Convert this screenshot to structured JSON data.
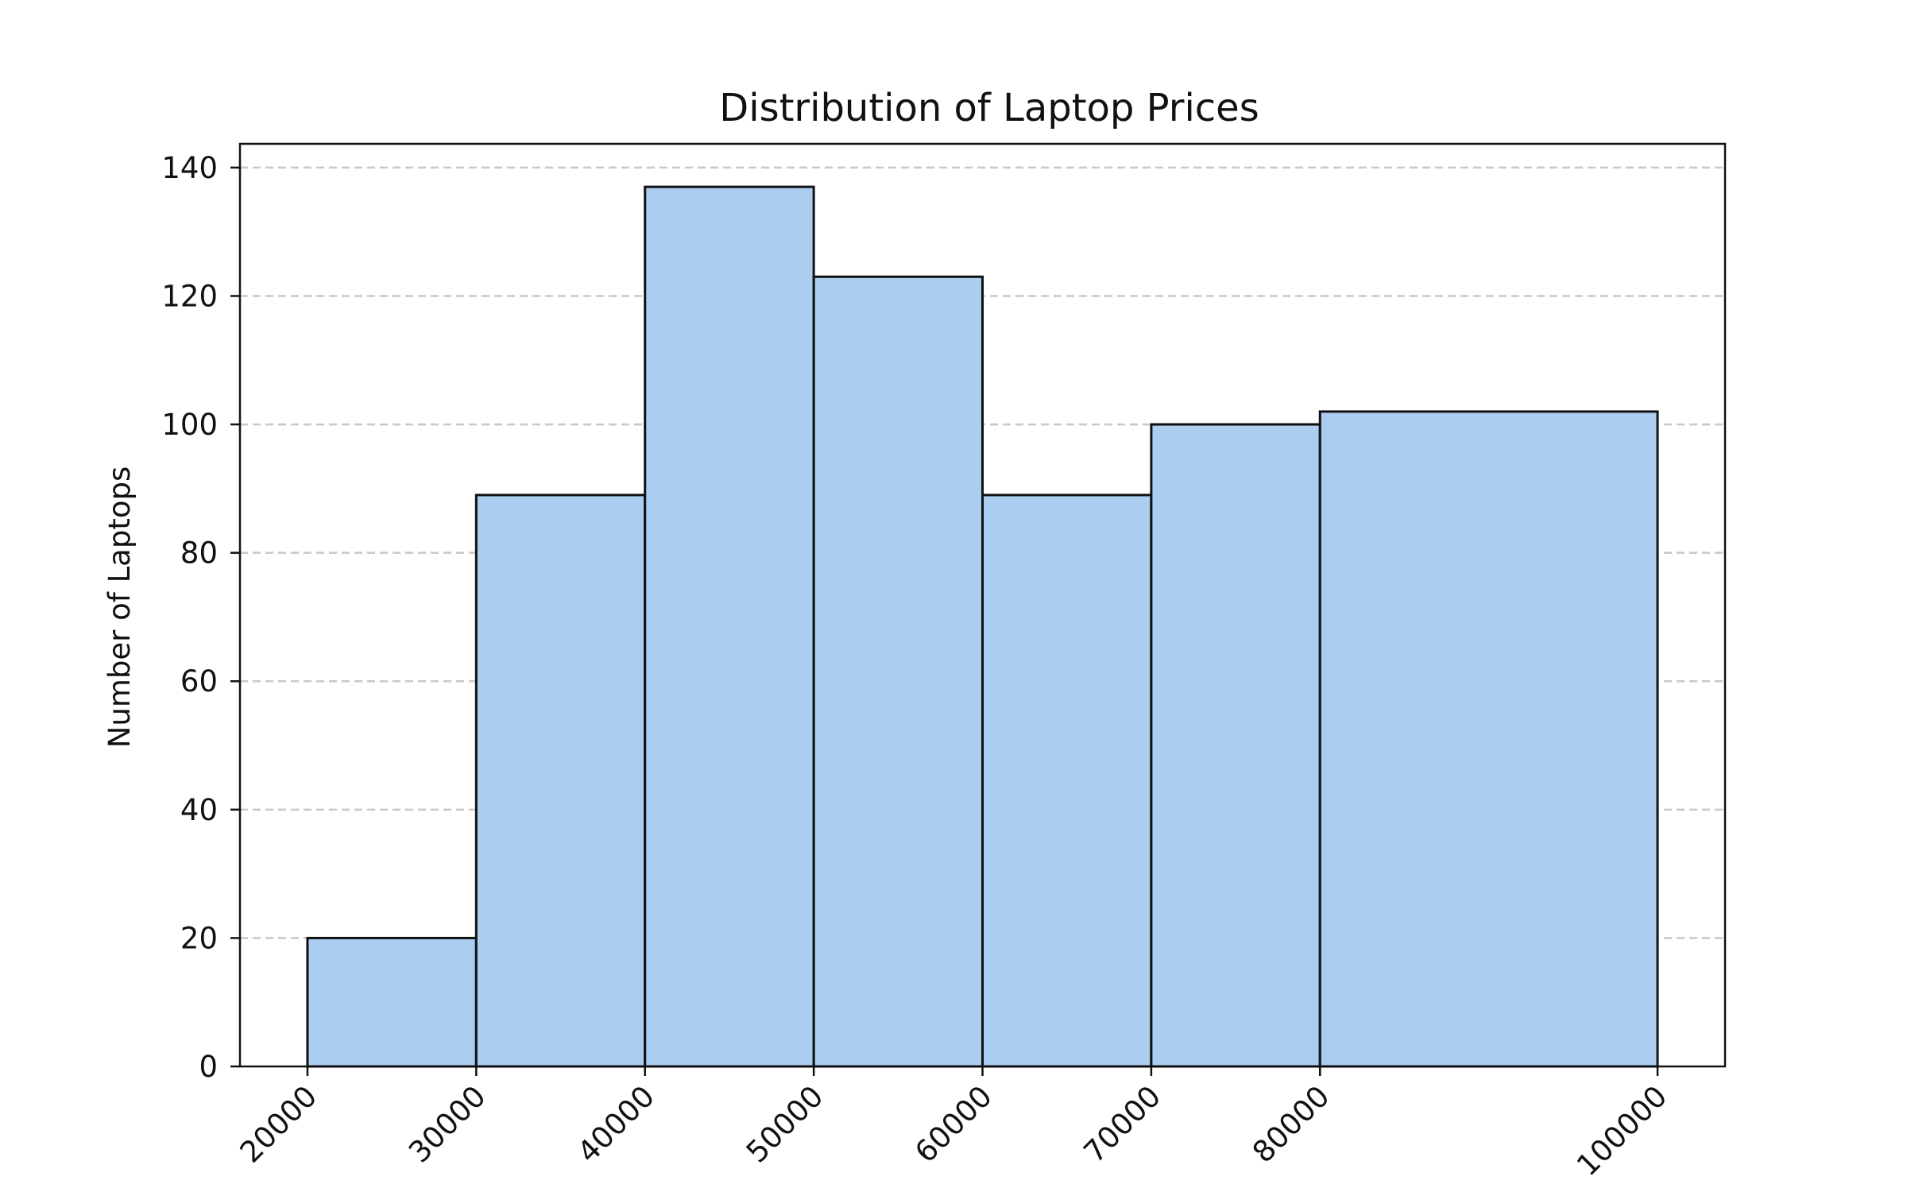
{
  "chart_data": {
    "type": "bar",
    "title": "Distribution of Laptop Prices",
    "xlabel": "",
    "ylabel": "Number of Laptops",
    "bins": [
      {
        "start": 20000,
        "end": 30000,
        "count": 20
      },
      {
        "start": 30000,
        "end": 40000,
        "count": 89
      },
      {
        "start": 40000,
        "end": 50000,
        "count": 137
      },
      {
        "start": 50000,
        "end": 60000,
        "count": 123
      },
      {
        "start": 60000,
        "end": 70000,
        "count": 89
      },
      {
        "start": 70000,
        "end": 80000,
        "count": 100
      },
      {
        "start": 80000,
        "end": 100000,
        "count": 102
      }
    ],
    "x_ticks": [
      "20000",
      "30000",
      "40000",
      "50000",
      "60000",
      "70000",
      "80000",
      "100000"
    ],
    "y_ticks": [
      "0",
      "20",
      "40",
      "60",
      "80",
      "100",
      "120",
      "140"
    ],
    "xlim": [
      16000,
      104000
    ],
    "ylim": [
      0,
      140
    ],
    "grid": "y dashed",
    "legend": "none",
    "colors": {
      "bar_fill": "#abcdef",
      "bar_edge": "#111111",
      "grid": "#c8c8c8",
      "axes": "#111111"
    }
  }
}
